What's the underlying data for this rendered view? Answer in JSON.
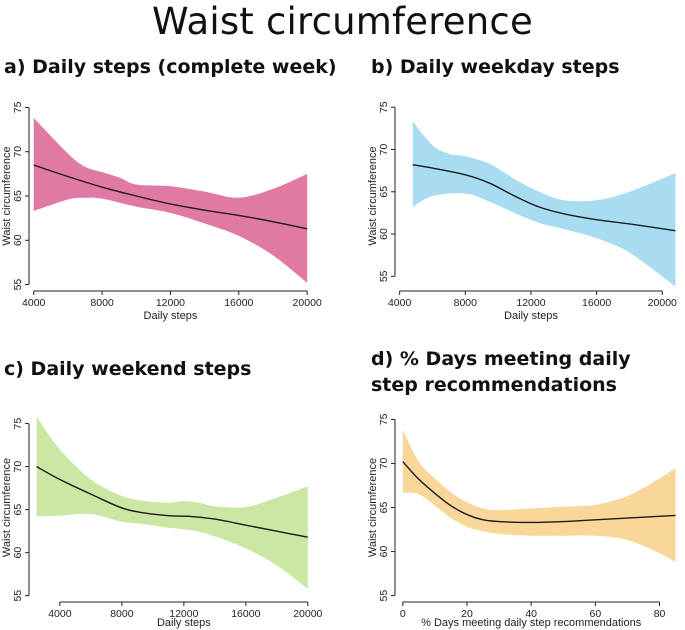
{
  "title": "Waist circumference",
  "chart_data": [
    {
      "id": "a",
      "type": "line",
      "title": "a) Daily steps (complete week)",
      "xlabel": "Daily steps",
      "ylabel": "Waist circumference",
      "xlim": [
        3900,
        20400
      ],
      "ylim": [
        54.5,
        75.5
      ],
      "xticks": [
        4000,
        8000,
        12000,
        16000,
        20000
      ],
      "yticks": [
        55,
        60,
        65,
        70,
        75
      ],
      "band_color": "#e07aa3",
      "series": [
        {
          "name": "estimate",
          "x": [
            4000,
            6000,
            8000,
            10000,
            12000,
            14000,
            16000,
            18000,
            20000
          ],
          "y": [
            68.5,
            67.2,
            66.0,
            65.0,
            64.1,
            63.4,
            62.8,
            62.1,
            61.3
          ]
        },
        {
          "name": "upper",
          "x": [
            4000,
            6000,
            7000,
            8000,
            9000,
            10000,
            12000,
            14000,
            16000,
            18000,
            20000
          ],
          "y": [
            73.8,
            69.8,
            68.3,
            67.7,
            67.1,
            66.3,
            66.1,
            65.5,
            64.8,
            65.8,
            67.5
          ]
        },
        {
          "name": "lower",
          "x": [
            4000,
            6000,
            7000,
            8000,
            10000,
            12000,
            14000,
            16000,
            18000,
            20000
          ],
          "y": [
            63.3,
            64.6,
            64.8,
            64.7,
            63.8,
            63.1,
            61.9,
            60.5,
            58.3,
            55.2
          ]
        }
      ]
    },
    {
      "id": "b",
      "type": "line",
      "title": "b) Daily weekday steps",
      "xlabel": "Daily steps",
      "ylabel": "Waist circumference",
      "xlim": [
        3900,
        21200
      ],
      "ylim": [
        53.5,
        75.5
      ],
      "xticks": [
        4000,
        8000,
        12000,
        16000,
        20000
      ],
      "yticks": [
        55,
        60,
        65,
        70,
        75
      ],
      "band_color": "#a8dcf0",
      "series": [
        {
          "name": "estimate",
          "x": [
            4800,
            6000,
            8000,
            9500,
            11000,
            12500,
            14000,
            16000,
            18000,
            20800
          ],
          "y": [
            68.2,
            67.8,
            67.0,
            66.0,
            64.5,
            63.2,
            62.4,
            61.7,
            61.2,
            60.4
          ]
        },
        {
          "name": "upper",
          "x": [
            4800,
            6000,
            7000,
            8000,
            9500,
            11000,
            12500,
            14000,
            16000,
            18000,
            20800
          ],
          "y": [
            73.3,
            70.5,
            69.5,
            69.2,
            68.3,
            66.5,
            65.0,
            64.0,
            64.0,
            65.0,
            67.2
          ]
        },
        {
          "name": "lower",
          "x": [
            4800,
            6000,
            8000,
            9500,
            11000,
            12500,
            14000,
            16000,
            18000,
            20800
          ],
          "y": [
            63.2,
            64.5,
            64.8,
            63.8,
            62.5,
            61.3,
            60.6,
            59.5,
            57.8,
            53.8
          ]
        }
      ]
    },
    {
      "id": "c",
      "type": "line",
      "title": "c) Daily weekend steps",
      "xlabel": "Daily steps",
      "ylabel": "Waist circumference",
      "xlim": [
        2200,
        20400
      ],
      "ylim": [
        54.5,
        76
      ],
      "xticks": [
        4000,
        8000,
        12000,
        16000,
        20000
      ],
      "yticks": [
        55,
        60,
        65,
        70,
        75
      ],
      "band_color": "#cbe7a3",
      "series": [
        {
          "name": "estimate",
          "x": [
            2500,
            4000,
            6000,
            8000,
            9500,
            11000,
            12500,
            14000,
            16000,
            18000,
            20000
          ],
          "y": [
            70.0,
            68.5,
            66.8,
            65.2,
            64.6,
            64.3,
            64.2,
            63.9,
            63.2,
            62.5,
            61.8
          ]
        },
        {
          "name": "upper",
          "x": [
            2500,
            4000,
            6000,
            8000,
            9500,
            11000,
            12000,
            13000,
            14000,
            16000,
            18000,
            20000
          ],
          "y": [
            75.8,
            72.0,
            68.5,
            66.6,
            66.0,
            65.8,
            66.0,
            65.8,
            65.4,
            65.3,
            66.4,
            67.7
          ]
        },
        {
          "name": "lower",
          "x": [
            2500,
            4000,
            6000,
            8000,
            9500,
            11000,
            12500,
            14000,
            16000,
            18000,
            20000
          ],
          "y": [
            64.2,
            64.3,
            64.5,
            63.6,
            63.3,
            62.9,
            62.6,
            61.9,
            60.5,
            58.5,
            55.8
          ]
        }
      ]
    },
    {
      "id": "d",
      "type": "line",
      "title": "d) % Days meeting daily step recommendations",
      "xlabel": "% Days meeting daily step recommendations",
      "ylabel": "Waist circumference",
      "xlim": [
        -1.5,
        87
      ],
      "ylim": [
        54.5,
        75.5
      ],
      "xticks": [
        0,
        20,
        40,
        60,
        80
      ],
      "yticks": [
        55,
        60,
        65,
        70,
        75
      ],
      "band_color": "#f9d79a",
      "series": [
        {
          "name": "estimate",
          "x": [
            0,
            5,
            10,
            15,
            20,
            25,
            30,
            40,
            50,
            60,
            70,
            80,
            85
          ],
          "y": [
            70.2,
            68.2,
            66.6,
            65.2,
            64.2,
            63.6,
            63.4,
            63.3,
            63.4,
            63.6,
            63.8,
            64.0,
            64.1
          ]
        },
        {
          "name": "upper",
          "x": [
            0,
            5,
            10,
            15,
            20,
            25,
            30,
            40,
            50,
            60,
            70,
            80,
            85
          ],
          "y": [
            73.8,
            70.2,
            68.3,
            66.7,
            65.6,
            64.9,
            64.7,
            64.9,
            65.1,
            65.3,
            66.3,
            68.3,
            69.5
          ]
        },
        {
          "name": "lower",
          "x": [
            0,
            5,
            10,
            15,
            20,
            25,
            30,
            40,
            50,
            60,
            70,
            80,
            85
          ],
          "y": [
            66.7,
            66.5,
            65.2,
            63.8,
            62.8,
            62.3,
            62.0,
            61.8,
            61.8,
            61.8,
            61.3,
            59.8,
            58.8
          ]
        }
      ]
    }
  ]
}
